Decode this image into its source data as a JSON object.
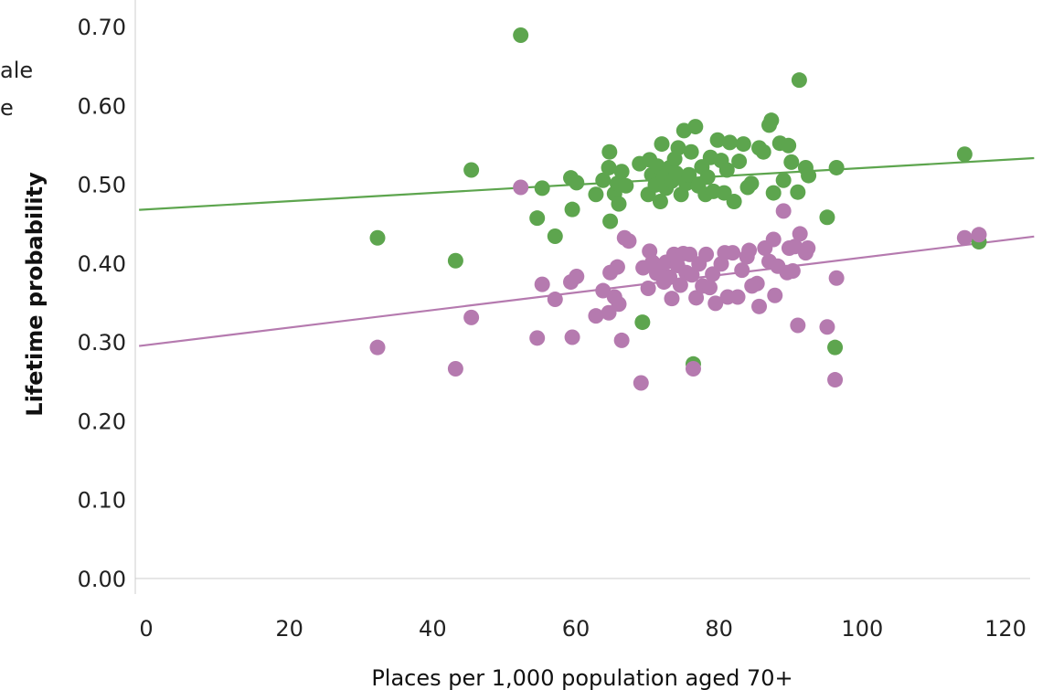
{
  "legend_fragments": [
    "ale",
    "e"
  ],
  "chart_data": {
    "type": "scatter",
    "title": "",
    "xlabel": "Places per 1,000 population aged 70+",
    "ylabel": "Lifetime probability",
    "xlim": [
      -1,
      124
    ],
    "ylim": [
      0,
      0.72
    ],
    "x_ticks": [
      "0",
      "20",
      "40",
      "60",
      "80",
      "100",
      "120"
    ],
    "y_ticks": [
      "0.00",
      "0.10",
      "0.20",
      "0.30",
      "0.40",
      "0.50",
      "0.60",
      "0.70"
    ],
    "grid": false,
    "colors": {
      "green": "#5da54e",
      "purple": "#b57aaf",
      "axis": "#cccccc"
    },
    "series": [
      {
        "color": "#5da54e",
        "trendline": {
          "intercept": 0.468,
          "slope": 0.000525
        },
        "points": [
          [
            32.3,
            0.432
          ],
          [
            43.2,
            0.403
          ],
          [
            45.4,
            0.518
          ],
          [
            52.3,
            0.689
          ],
          [
            54.6,
            0.457
          ],
          [
            55.3,
            0.495
          ],
          [
            57.1,
            0.434
          ],
          [
            59.3,
            0.508
          ],
          [
            59.5,
            0.468
          ],
          [
            60.1,
            0.502
          ],
          [
            62.8,
            0.487
          ],
          [
            63.8,
            0.505
          ],
          [
            64.6,
            0.521
          ],
          [
            64.7,
            0.541
          ],
          [
            64.8,
            0.453
          ],
          [
            65.4,
            0.488
          ],
          [
            65.8,
            0.501
          ],
          [
            66.0,
            0.475
          ],
          [
            66.4,
            0.516
          ],
          [
            67.0,
            0.498
          ],
          [
            68.9,
            0.526
          ],
          [
            69.3,
            0.325
          ],
          [
            70.1,
            0.487
          ],
          [
            70.3,
            0.531
          ],
          [
            70.6,
            0.512
          ],
          [
            71.1,
            0.499
          ],
          [
            71.4,
            0.523
          ],
          [
            71.8,
            0.478
          ],
          [
            72.0,
            0.551
          ],
          [
            72.3,
            0.509
          ],
          [
            72.6,
            0.495
          ],
          [
            73.1,
            0.521
          ],
          [
            73.4,
            0.504
          ],
          [
            73.8,
            0.532
          ],
          [
            74.0,
            0.514
          ],
          [
            74.3,
            0.546
          ],
          [
            74.7,
            0.487
          ],
          [
            75.1,
            0.568
          ],
          [
            75.4,
            0.501
          ],
          [
            75.8,
            0.512
          ],
          [
            76.1,
            0.541
          ],
          [
            76.4,
            0.272
          ],
          [
            76.7,
            0.573
          ],
          [
            77.1,
            0.498
          ],
          [
            77.6,
            0.522
          ],
          [
            78.1,
            0.487
          ],
          [
            78.4,
            0.509
          ],
          [
            78.8,
            0.534
          ],
          [
            79.2,
            0.491
          ],
          [
            79.8,
            0.556
          ],
          [
            80.3,
            0.53
          ],
          [
            80.7,
            0.489
          ],
          [
            81.1,
            0.518
          ],
          [
            81.5,
            0.553
          ],
          [
            82.1,
            0.478
          ],
          [
            82.8,
            0.529
          ],
          [
            83.4,
            0.551
          ],
          [
            84.0,
            0.496
          ],
          [
            84.5,
            0.501
          ],
          [
            85.6,
            0.546
          ],
          [
            86.2,
            0.541
          ],
          [
            87.0,
            0.575
          ],
          [
            87.3,
            0.581
          ],
          [
            87.6,
            0.489
          ],
          [
            88.5,
            0.552
          ],
          [
            89.0,
            0.505
          ],
          [
            89.7,
            0.549
          ],
          [
            90.1,
            0.528
          ],
          [
            91.0,
            0.49
          ],
          [
            91.2,
            0.632
          ],
          [
            92.1,
            0.521
          ],
          [
            92.5,
            0.511
          ],
          [
            95.1,
            0.458
          ],
          [
            96.2,
            0.293
          ],
          [
            96.4,
            0.521
          ],
          [
            114.3,
            0.538
          ],
          [
            116.3,
            0.427
          ]
        ]
      },
      {
        "color": "#b57aaf",
        "trendline": {
          "intercept": 0.296,
          "slope": 0.00111
        },
        "points": [
          [
            32.3,
            0.293
          ],
          [
            43.2,
            0.266
          ],
          [
            45.4,
            0.331
          ],
          [
            52.3,
            0.496
          ],
          [
            54.6,
            0.305
          ],
          [
            55.3,
            0.373
          ],
          [
            57.1,
            0.354
          ],
          [
            59.3,
            0.376
          ],
          [
            59.5,
            0.306
          ],
          [
            60.1,
            0.383
          ],
          [
            62.8,
            0.333
          ],
          [
            63.8,
            0.365
          ],
          [
            64.6,
            0.337
          ],
          [
            64.8,
            0.388
          ],
          [
            65.4,
            0.357
          ],
          [
            65.8,
            0.395
          ],
          [
            66.0,
            0.348
          ],
          [
            66.4,
            0.302
          ],
          [
            66.8,
            0.432
          ],
          [
            67.4,
            0.428
          ],
          [
            69.1,
            0.248
          ],
          [
            69.4,
            0.394
          ],
          [
            70.1,
            0.368
          ],
          [
            70.3,
            0.415
          ],
          [
            70.7,
            0.401
          ],
          [
            71.3,
            0.387
          ],
          [
            71.8,
            0.391
          ],
          [
            72.3,
            0.376
          ],
          [
            72.6,
            0.401
          ],
          [
            73.1,
            0.382
          ],
          [
            73.4,
            0.355
          ],
          [
            73.7,
            0.411
          ],
          [
            74.2,
            0.397
          ],
          [
            74.6,
            0.372
          ],
          [
            75.0,
            0.412
          ],
          [
            75.4,
            0.388
          ],
          [
            75.9,
            0.411
          ],
          [
            76.2,
            0.385
          ],
          [
            76.4,
            0.266
          ],
          [
            76.8,
            0.356
          ],
          [
            77.2,
            0.399
          ],
          [
            77.7,
            0.371
          ],
          [
            78.2,
            0.411
          ],
          [
            78.7,
            0.369
          ],
          [
            79.1,
            0.386
          ],
          [
            79.5,
            0.349
          ],
          [
            80.3,
            0.399
          ],
          [
            80.8,
            0.413
          ],
          [
            81.2,
            0.357
          ],
          [
            81.9,
            0.413
          ],
          [
            82.6,
            0.357
          ],
          [
            83.2,
            0.391
          ],
          [
            83.9,
            0.408
          ],
          [
            84.2,
            0.416
          ],
          [
            84.6,
            0.371
          ],
          [
            85.3,
            0.374
          ],
          [
            85.6,
            0.345
          ],
          [
            86.4,
            0.419
          ],
          [
            87.0,
            0.402
          ],
          [
            87.6,
            0.43
          ],
          [
            87.8,
            0.359
          ],
          [
            88.2,
            0.396
          ],
          [
            89.0,
            0.466
          ],
          [
            89.5,
            0.388
          ],
          [
            89.8,
            0.419
          ],
          [
            90.3,
            0.39
          ],
          [
            90.6,
            0.421
          ],
          [
            91.0,
            0.321
          ],
          [
            91.3,
            0.437
          ],
          [
            92.1,
            0.413
          ],
          [
            92.4,
            0.419
          ],
          [
            95.1,
            0.319
          ],
          [
            96.2,
            0.252
          ],
          [
            96.4,
            0.381
          ],
          [
            114.3,
            0.432
          ],
          [
            116.3,
            0.436
          ]
        ]
      }
    ]
  }
}
